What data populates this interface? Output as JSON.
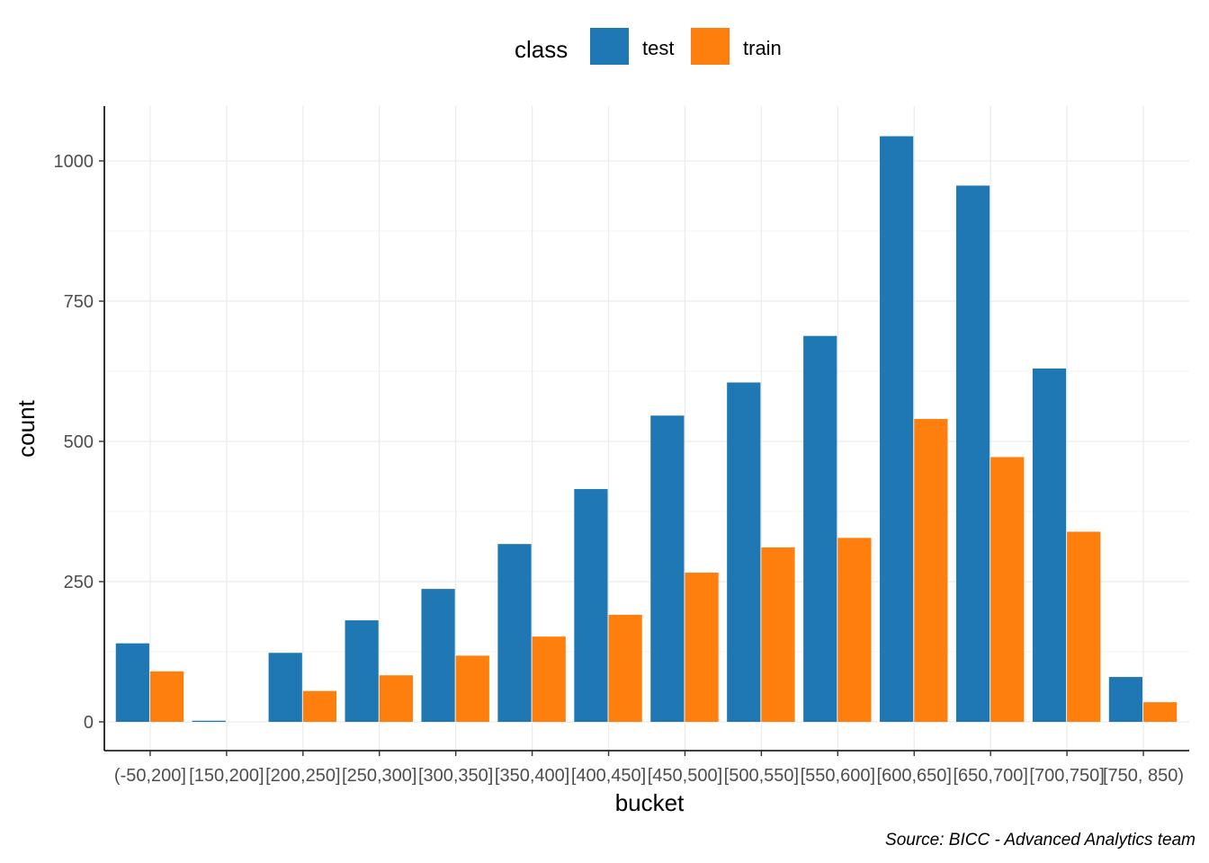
{
  "chart_data": {
    "type": "bar",
    "xlabel": "bucket",
    "ylabel": "count",
    "caption": "Source: BICC - Advanced Analytics team",
    "legend": {
      "title": "class",
      "position": "top",
      "entries": [
        "test",
        "train"
      ]
    },
    "categories": [
      "(-50,200]",
      "[150,200]",
      "[200,250]",
      "[250,300]",
      "[300,350]",
      "[350,400]",
      "[400,450]",
      "[450,500]",
      "[500,550]",
      "[550,600]",
      "[600,650]",
      "[650,700]",
      "[700,750]",
      "[750, 850)"
    ],
    "series": [
      {
        "name": "test",
        "color": "#1f77b4",
        "values": [
          140,
          2,
          123,
          181,
          237,
          317,
          415,
          546,
          605,
          688,
          1044,
          956,
          630,
          80
        ]
      },
      {
        "name": "train",
        "color": "#ff7f0e",
        "values": [
          90,
          0,
          55,
          83,
          118,
          152,
          191,
          266,
          311,
          328,
          540,
          472,
          339,
          35
        ]
      }
    ],
    "yticks": [
      0,
      250,
      500,
      750,
      1000
    ],
    "ylim": [
      -50,
      1095
    ],
    "grid": true
  }
}
